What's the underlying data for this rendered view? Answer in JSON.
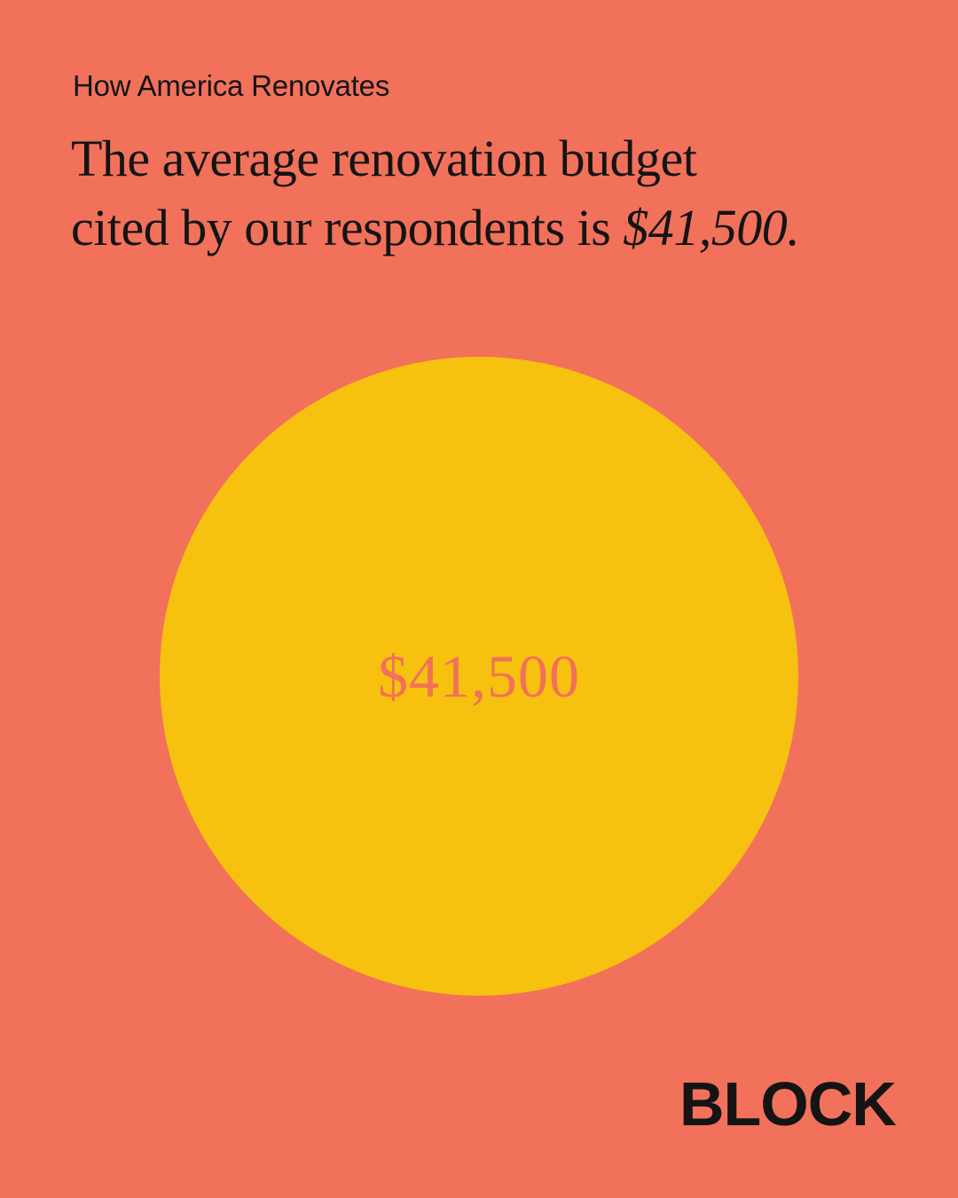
{
  "header": {
    "kicker": "How America Renovates"
  },
  "headline": {
    "line1": "The average renovation budget",
    "line2": "cited by our respondents is",
    "emphasis": "$41,500."
  },
  "circle": {
    "label": "$41,500"
  },
  "brand": {
    "logo": "BLOCK"
  }
}
